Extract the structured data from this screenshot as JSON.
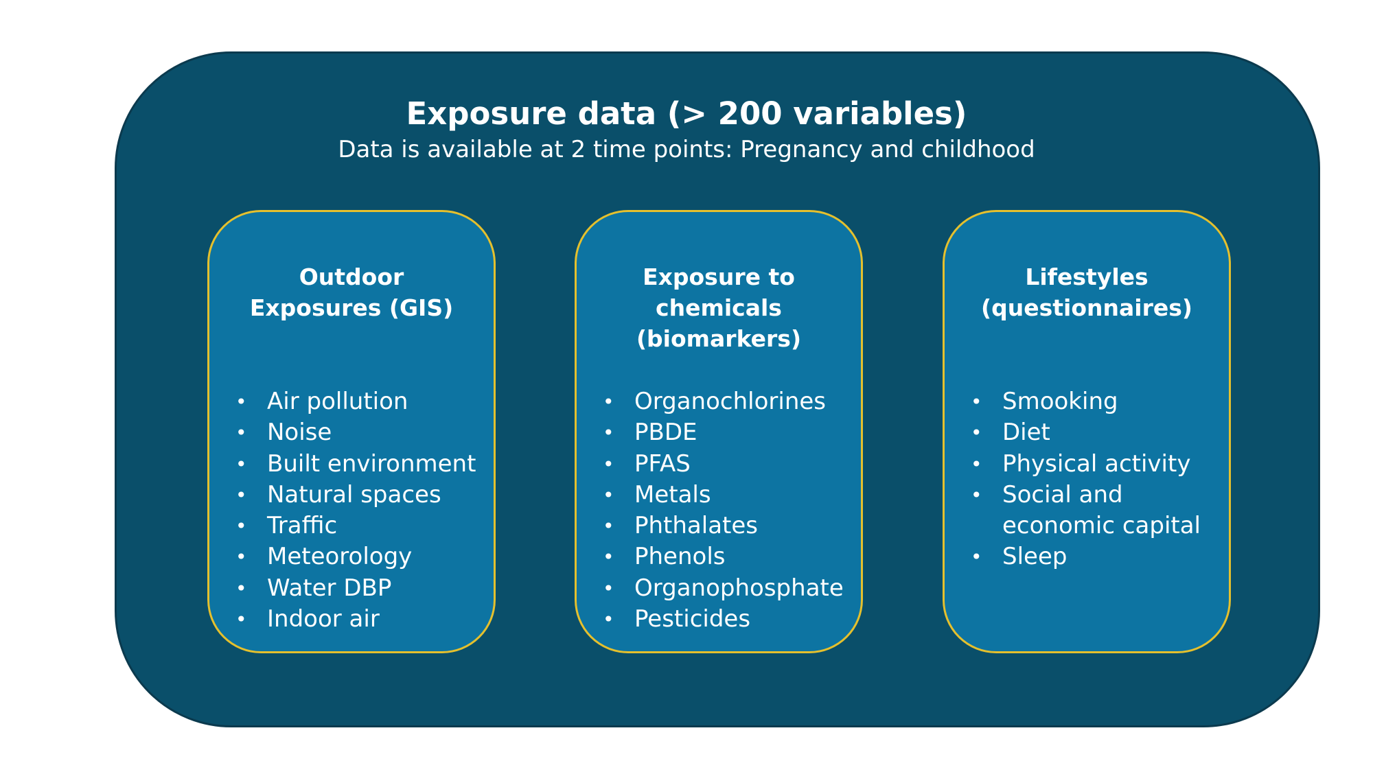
{
  "title": "Exposure data (> 200 variables)",
  "subtitle": "Data is available at 2 time points: Pregnancy and childhood",
  "colors": {
    "outer_panel": "#0a4f6a",
    "card_fill": "#0d74a2",
    "card_border": "#e5c02d",
    "text": "#ffffff"
  },
  "bullet_glyph": "•",
  "cards": [
    {
      "heading": "Outdoor\nExposures (GIS)",
      "items": [
        "Air pollution",
        "Noise",
        "Built environment",
        "Natural spaces",
        "Traffic",
        "Meteorology",
        "Water DBP",
        "Indoor air"
      ]
    },
    {
      "heading": "Exposure to\nchemicals\n(biomarkers)",
      "items": [
        "Organochlorines",
        "PBDE",
        "PFAS",
        "Metals",
        "Phthalates",
        "Phenols",
        "Organophosphate",
        "Pesticides"
      ]
    },
    {
      "heading": "Lifestyles\n(questionnaires)",
      "items": [
        "Smooking",
        "Diet",
        "Physical activity",
        "Social and\neconomic capital",
        "Sleep"
      ]
    }
  ]
}
